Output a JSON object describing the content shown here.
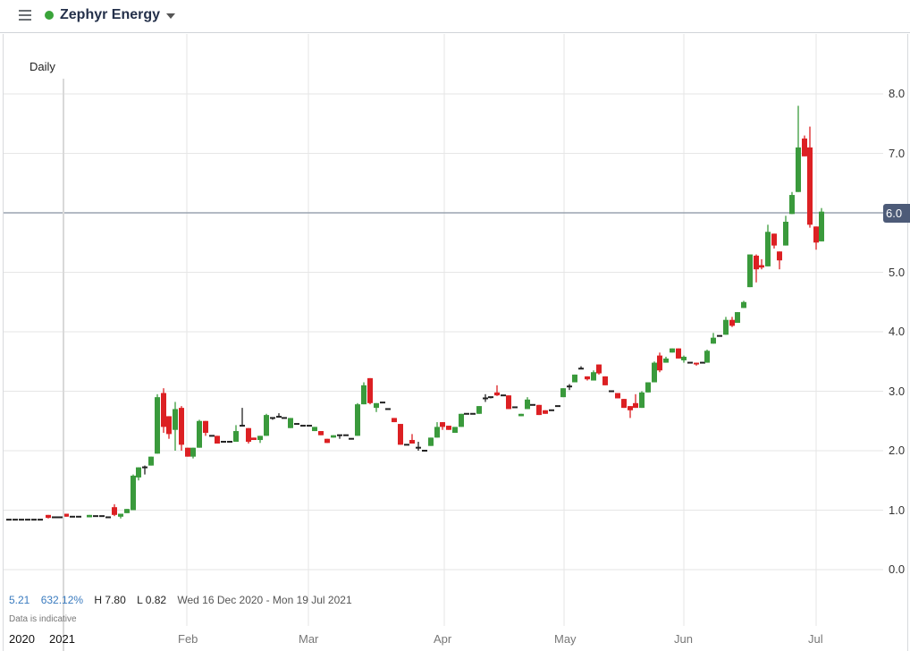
{
  "header": {
    "menu_icon": "hamburger-icon",
    "status_color": "#3aa43a",
    "instrument": "Zephyr Energy",
    "dropdown_icon": "caret-down-icon"
  },
  "chart": {
    "interval": "Daily",
    "current_price_label": "6.0",
    "stats": {
      "change": "5.21",
      "change_pct": "632.12%",
      "high": "H 7.80",
      "low": "L 0.82",
      "range": "Wed 16 Dec 2020 - Mon 19 Jul 2021"
    },
    "disclaimer": "Data is indicative",
    "x_labels": [
      {
        "text": "2020",
        "x": 10,
        "kind": "year"
      },
      {
        "text": "2021",
        "x": 55,
        "kind": "year"
      },
      {
        "text": "Feb",
        "x": 199,
        "kind": "month"
      },
      {
        "text": "Mar",
        "x": 334,
        "kind": "month"
      },
      {
        "text": "Apr",
        "x": 485,
        "kind": "month"
      },
      {
        "text": "May",
        "x": 620,
        "kind": "month"
      },
      {
        "text": "Jun",
        "x": 754,
        "kind": "month"
      },
      {
        "text": "Jul",
        "x": 904,
        "kind": "month"
      }
    ],
    "colors": {
      "up": "#3a9a3c",
      "down": "#dc2023",
      "doji": "#222222",
      "grid": "#e6e6e6",
      "price_line": "#9aa3b0",
      "price_tag": "#4d5b78"
    }
  },
  "chart_data": {
    "type": "candlestick",
    "title": "Zephyr Energy",
    "interval": "Daily",
    "xlabel": "",
    "ylabel": "",
    "ylim": [
      0,
      8.0
    ],
    "y_ticks": [
      "0.0",
      "1.0",
      "2.0",
      "3.0",
      "4.0",
      "5.0",
      "6.0",
      "7.0",
      "8.0"
    ],
    "x_ticks": [
      "2020",
      "2021",
      "Feb",
      "Mar",
      "Apr",
      "May",
      "Jun",
      "Jul"
    ],
    "grid": true,
    "current_price": 6.0,
    "high": 7.8,
    "low": 0.82,
    "change": 5.21,
    "change_pct": 632.12,
    "date_range": "Wed 16 Dec 2020 - Mon 19 Jul 2021",
    "candles": [
      {
        "x": 10,
        "o": 0.84,
        "h": 0.84,
        "l": 0.84,
        "c": 0.84
      },
      {
        "x": 17,
        "o": 0.84,
        "h": 0.84,
        "l": 0.84,
        "c": 0.84
      },
      {
        "x": 24,
        "o": 0.84,
        "h": 0.84,
        "l": 0.84,
        "c": 0.84
      },
      {
        "x": 31,
        "o": 0.84,
        "h": 0.84,
        "l": 0.84,
        "c": 0.84
      },
      {
        "x": 38,
        "o": 0.84,
        "h": 0.84,
        "l": 0.84,
        "c": 0.84
      },
      {
        "x": 45,
        "o": 0.84,
        "h": 0.84,
        "l": 0.84,
        "c": 0.84
      },
      {
        "x": 54,
        "o": 0.92,
        "h": 0.92,
        "l": 0.86,
        "c": 0.87
      },
      {
        "x": 61,
        "o": 0.88,
        "h": 0.88,
        "l": 0.88,
        "c": 0.88
      },
      {
        "x": 67,
        "o": 0.88,
        "h": 0.88,
        "l": 0.88,
        "c": 0.88
      },
      {
        "x": 74,
        "o": 0.94,
        "h": 0.94,
        "l": 0.89,
        "c": 0.89
      },
      {
        "x": 81,
        "o": 0.89,
        "h": 0.89,
        "l": 0.89,
        "c": 0.89
      },
      {
        "x": 88,
        "o": 0.89,
        "h": 0.89,
        "l": 0.89,
        "c": 0.89
      },
      {
        "x": 100,
        "o": 0.88,
        "h": 0.92,
        "l": 0.88,
        "c": 0.92
      },
      {
        "x": 107,
        "o": 0.9,
        "h": 0.9,
        "l": 0.9,
        "c": 0.9
      },
      {
        "x": 114,
        "o": 0.9,
        "h": 0.9,
        "l": 0.9,
        "c": 0.9
      },
      {
        "x": 121,
        "o": 0.88,
        "h": 0.88,
        "l": 0.88,
        "c": 0.88
      },
      {
        "x": 128,
        "o": 1.05,
        "h": 1.1,
        "l": 0.9,
        "c": 0.92
      },
      {
        "x": 135,
        "o": 0.89,
        "h": 0.94,
        "l": 0.86,
        "c": 0.94
      },
      {
        "x": 142,
        "o": 0.95,
        "h": 1.02,
        "l": 0.95,
        "c": 1.02
      },
      {
        "x": 149,
        "o": 1.0,
        "h": 1.6,
        "l": 1.0,
        "c": 1.58
      },
      {
        "x": 155,
        "o": 1.55,
        "h": 1.72,
        "l": 1.5,
        "c": 1.72
      },
      {
        "x": 162,
        "o": 1.72,
        "h": 1.75,
        "l": 1.6,
        "c": 1.72
      },
      {
        "x": 169,
        "o": 1.75,
        "h": 1.9,
        "l": 1.75,
        "c": 1.9
      },
      {
        "x": 176,
        "o": 1.95,
        "h": 2.95,
        "l": 1.95,
        "c": 2.9
      },
      {
        "x": 183,
        "o": 2.97,
        "h": 3.05,
        "l": 2.3,
        "c": 2.4
      },
      {
        "x": 189,
        "o": 2.58,
        "h": 2.58,
        "l": 2.2,
        "c": 2.28
      },
      {
        "x": 196,
        "o": 2.35,
        "h": 2.82,
        "l": 2.0,
        "c": 2.7
      },
      {
        "x": 203,
        "o": 2.72,
        "h": 2.75,
        "l": 2.0,
        "c": 2.1
      },
      {
        "x": 210,
        "o": 2.05,
        "h": 2.05,
        "l": 1.9,
        "c": 1.9
      },
      {
        "x": 216,
        "o": 1.9,
        "h": 2.05,
        "l": 1.87,
        "c": 2.05
      },
      {
        "x": 223,
        "o": 2.05,
        "h": 2.52,
        "l": 2.05,
        "c": 2.5
      },
      {
        "x": 230,
        "o": 2.5,
        "h": 2.5,
        "l": 2.25,
        "c": 2.3
      },
      {
        "x": 237,
        "o": 2.25,
        "h": 2.25,
        "l": 2.25,
        "c": 2.25
      },
      {
        "x": 243,
        "o": 2.25,
        "h": 2.25,
        "l": 2.12,
        "c": 2.12
      },
      {
        "x": 250,
        "o": 2.15,
        "h": 2.15,
        "l": 2.15,
        "c": 2.15
      },
      {
        "x": 257,
        "o": 2.15,
        "h": 2.15,
        "l": 2.15,
        "c": 2.15
      },
      {
        "x": 264,
        "o": 2.15,
        "h": 2.43,
        "l": 2.15,
        "c": 2.33
      },
      {
        "x": 271,
        "o": 2.42,
        "h": 2.72,
        "l": 2.42,
        "c": 2.42
      },
      {
        "x": 278,
        "o": 2.38,
        "h": 2.38,
        "l": 2.12,
        "c": 2.15
      },
      {
        "x": 284,
        "o": 2.22,
        "h": 2.22,
        "l": 2.18,
        "c": 2.18
      },
      {
        "x": 291,
        "o": 2.18,
        "h": 2.25,
        "l": 2.13,
        "c": 2.25
      },
      {
        "x": 298,
        "o": 2.25,
        "h": 2.62,
        "l": 2.25,
        "c": 2.6
      },
      {
        "x": 305,
        "o": 2.55,
        "h": 2.55,
        "l": 2.52,
        "c": 2.55
      },
      {
        "x": 312,
        "o": 2.57,
        "h": 2.63,
        "l": 2.57,
        "c": 2.57
      },
      {
        "x": 318,
        "o": 2.55,
        "h": 2.55,
        "l": 2.55,
        "c": 2.55
      },
      {
        "x": 325,
        "o": 2.38,
        "h": 2.55,
        "l": 2.38,
        "c": 2.55
      },
      {
        "x": 332,
        "o": 2.45,
        "h": 2.45,
        "l": 2.45,
        "c": 2.45
      },
      {
        "x": 339,
        "o": 2.42,
        "h": 2.42,
        "l": 2.42,
        "c": 2.42
      },
      {
        "x": 346,
        "o": 2.42,
        "h": 2.42,
        "l": 2.42,
        "c": 2.42
      },
      {
        "x": 352,
        "o": 2.33,
        "h": 2.4,
        "l": 2.33,
        "c": 2.4
      },
      {
        "x": 359,
        "o": 2.33,
        "h": 2.33,
        "l": 2.26,
        "c": 2.26
      },
      {
        "x": 366,
        "o": 2.2,
        "h": 2.2,
        "l": 2.13,
        "c": 2.13
      },
      {
        "x": 373,
        "o": 2.22,
        "h": 2.26,
        "l": 2.22,
        "c": 2.26
      },
      {
        "x": 380,
        "o": 2.26,
        "h": 2.26,
        "l": 2.2,
        "c": 2.26
      },
      {
        "x": 387,
        "o": 2.26,
        "h": 2.26,
        "l": 2.26,
        "c": 2.26
      },
      {
        "x": 393,
        "o": 2.2,
        "h": 2.2,
        "l": 2.2,
        "c": 2.2
      },
      {
        "x": 400,
        "o": 2.25,
        "h": 2.8,
        "l": 2.25,
        "c": 2.78
      },
      {
        "x": 407,
        "o": 2.78,
        "h": 3.15,
        "l": 2.78,
        "c": 3.1
      },
      {
        "x": 414,
        "o": 3.22,
        "h": 3.22,
        "l": 2.78,
        "c": 2.8
      },
      {
        "x": 421,
        "o": 2.72,
        "h": 2.8,
        "l": 2.65,
        "c": 2.8
      },
      {
        "x": 428,
        "o": 2.81,
        "h": 2.81,
        "l": 2.81,
        "c": 2.81
      },
      {
        "x": 434,
        "o": 2.7,
        "h": 2.7,
        "l": 2.7,
        "c": 2.7
      },
      {
        "x": 441,
        "o": 2.55,
        "h": 2.55,
        "l": 2.48,
        "c": 2.48
      },
      {
        "x": 448,
        "o": 2.45,
        "h": 2.45,
        "l": 2.1,
        "c": 2.1
      },
      {
        "x": 455,
        "o": 2.1,
        "h": 2.1,
        "l": 2.1,
        "c": 2.1
      },
      {
        "x": 461,
        "o": 2.18,
        "h": 2.28,
        "l": 2.12,
        "c": 2.12
      },
      {
        "x": 468,
        "o": 2.05,
        "h": 2.15,
        "l": 2.0,
        "c": 2.05
      },
      {
        "x": 475,
        "o": 2.0,
        "h": 2.0,
        "l": 2.0,
        "c": 2.0
      },
      {
        "x": 482,
        "o": 2.08,
        "h": 2.22,
        "l": 2.08,
        "c": 2.22
      },
      {
        "x": 489,
        "o": 2.22,
        "h": 2.48,
        "l": 2.22,
        "c": 2.4
      },
      {
        "x": 495,
        "o": 2.48,
        "h": 2.48,
        "l": 2.35,
        "c": 2.4
      },
      {
        "x": 502,
        "o": 2.42,
        "h": 2.42,
        "l": 2.35,
        "c": 2.35
      },
      {
        "x": 509,
        "o": 2.3,
        "h": 2.35,
        "l": 2.3,
        "c": 2.4
      },
      {
        "x": 516,
        "o": 2.4,
        "h": 2.62,
        "l": 2.4,
        "c": 2.62
      },
      {
        "x": 522,
        "o": 2.62,
        "h": 2.62,
        "l": 2.62,
        "c": 2.62
      },
      {
        "x": 529,
        "o": 2.62,
        "h": 2.62,
        "l": 2.62,
        "c": 2.62
      },
      {
        "x": 536,
        "o": 2.62,
        "h": 2.75,
        "l": 2.62,
        "c": 2.75
      },
      {
        "x": 543,
        "o": 2.88,
        "h": 2.95,
        "l": 2.82,
        "c": 2.88
      },
      {
        "x": 549,
        "o": 2.9,
        "h": 2.9,
        "l": 2.88,
        "c": 2.9
      },
      {
        "x": 556,
        "o": 2.98,
        "h": 3.1,
        "l": 2.92,
        "c": 2.93
      },
      {
        "x": 563,
        "o": 2.93,
        "h": 2.93,
        "l": 2.92,
        "c": 2.93
      },
      {
        "x": 569,
        "o": 2.93,
        "h": 2.93,
        "l": 2.7,
        "c": 2.7
      },
      {
        "x": 576,
        "o": 2.73,
        "h": 2.73,
        "l": 2.73,
        "c": 2.73
      },
      {
        "x": 583,
        "o": 2.58,
        "h": 2.62,
        "l": 2.58,
        "c": 2.62
      },
      {
        "x": 590,
        "o": 2.7,
        "h": 2.9,
        "l": 2.7,
        "c": 2.86
      },
      {
        "x": 596,
        "o": 2.77,
        "h": 2.77,
        "l": 2.77,
        "c": 2.77
      },
      {
        "x": 603,
        "o": 2.77,
        "h": 2.77,
        "l": 2.6,
        "c": 2.6
      },
      {
        "x": 610,
        "o": 2.68,
        "h": 2.68,
        "l": 2.62,
        "c": 2.62
      },
      {
        "x": 617,
        "o": 2.68,
        "h": 2.68,
        "l": 2.68,
        "c": 2.68
      },
      {
        "x": 624,
        "o": 2.75,
        "h": 2.75,
        "l": 2.75,
        "c": 2.75
      },
      {
        "x": 630,
        "o": 2.9,
        "h": 3.05,
        "l": 2.9,
        "c": 3.05
      },
      {
        "x": 637,
        "o": 3.08,
        "h": 3.12,
        "l": 3.02,
        "c": 3.08
      },
      {
        "x": 643,
        "o": 3.15,
        "h": 3.28,
        "l": 3.15,
        "c": 3.28
      },
      {
        "x": 650,
        "o": 3.38,
        "h": 3.42,
        "l": 3.38,
        "c": 3.38
      },
      {
        "x": 657,
        "o": 3.25,
        "h": 3.25,
        "l": 3.18,
        "c": 3.2
      },
      {
        "x": 664,
        "o": 3.18,
        "h": 3.35,
        "l": 3.18,
        "c": 3.32
      },
      {
        "x": 670,
        "o": 3.45,
        "h": 3.45,
        "l": 3.28,
        "c": 3.3
      },
      {
        "x": 677,
        "o": 3.25,
        "h": 3.25,
        "l": 3.1,
        "c": 3.1
      },
      {
        "x": 684,
        "o": 3.0,
        "h": 3.0,
        "l": 3.0,
        "c": 3.0
      },
      {
        "x": 691,
        "o": 2.97,
        "h": 2.97,
        "l": 2.88,
        "c": 2.88
      },
      {
        "x": 698,
        "o": 2.87,
        "h": 2.87,
        "l": 2.72,
        "c": 2.72
      },
      {
        "x": 705,
        "o": 2.75,
        "h": 2.75,
        "l": 2.55,
        "c": 2.68
      },
      {
        "x": 711,
        "o": 2.8,
        "h": 2.95,
        "l": 2.72,
        "c": 2.72
      },
      {
        "x": 718,
        "o": 2.72,
        "h": 3.0,
        "l": 2.72,
        "c": 2.98
      },
      {
        "x": 725,
        "o": 2.98,
        "h": 3.15,
        "l": 2.98,
        "c": 3.15
      },
      {
        "x": 732,
        "o": 3.15,
        "h": 3.5,
        "l": 3.15,
        "c": 3.48
      },
      {
        "x": 738,
        "o": 3.6,
        "h": 3.65,
        "l": 3.32,
        "c": 3.35
      },
      {
        "x": 745,
        "o": 3.48,
        "h": 3.58,
        "l": 3.48,
        "c": 3.55
      },
      {
        "x": 752,
        "o": 3.65,
        "h": 3.72,
        "l": 3.65,
        "c": 3.72
      },
      {
        "x": 759,
        "o": 3.72,
        "h": 3.72,
        "l": 3.55,
        "c": 3.55
      },
      {
        "x": 765,
        "o": 3.52,
        "h": 3.6,
        "l": 3.48,
        "c": 3.58
      },
      {
        "x": 772,
        "o": 3.48,
        "h": 3.48,
        "l": 3.48,
        "c": 3.48
      },
      {
        "x": 779,
        "o": 3.48,
        "h": 3.48,
        "l": 3.43,
        "c": 3.45
      },
      {
        "x": 786,
        "o": 3.48,
        "h": 3.48,
        "l": 3.48,
        "c": 3.48
      },
      {
        "x": 791,
        "o": 3.48,
        "h": 3.7,
        "l": 3.48,
        "c": 3.68
      },
      {
        "x": 798,
        "o": 3.8,
        "h": 3.98,
        "l": 3.8,
        "c": 3.9
      },
      {
        "x": 805,
        "o": 3.93,
        "h": 3.93,
        "l": 3.93,
        "c": 3.93
      },
      {
        "x": 812,
        "o": 3.95,
        "h": 4.25,
        "l": 3.95,
        "c": 4.2
      },
      {
        "x": 819,
        "o": 4.2,
        "h": 4.25,
        "l": 4.08,
        "c": 4.1
      },
      {
        "x": 825,
        "o": 4.15,
        "h": 4.33,
        "l": 4.15,
        "c": 4.33
      },
      {
        "x": 832,
        "o": 4.4,
        "h": 4.52,
        "l": 4.4,
        "c": 4.5
      },
      {
        "x": 839,
        "o": 4.75,
        "h": 5.3,
        "l": 4.75,
        "c": 5.3
      },
      {
        "x": 846,
        "o": 5.28,
        "h": 5.3,
        "l": 4.83,
        "c": 5.05
      },
      {
        "x": 852,
        "o": 5.12,
        "h": 5.22,
        "l": 5.05,
        "c": 5.08
      },
      {
        "x": 859,
        "o": 5.1,
        "h": 5.8,
        "l": 5.1,
        "c": 5.68
      },
      {
        "x": 866,
        "o": 5.65,
        "h": 5.65,
        "l": 5.4,
        "c": 5.45
      },
      {
        "x": 872,
        "o": 5.35,
        "h": 5.35,
        "l": 5.05,
        "c": 5.2
      },
      {
        "x": 879,
        "o": 5.45,
        "h": 5.95,
        "l": 5.45,
        "c": 5.85
      },
      {
        "x": 886,
        "o": 5.98,
        "h": 6.35,
        "l": 5.98,
        "c": 6.3
      },
      {
        "x": 893,
        "o": 6.35,
        "h": 7.8,
        "l": 6.35,
        "c": 7.1
      },
      {
        "x": 900,
        "o": 7.25,
        "h": 7.3,
        "l": 6.95,
        "c": 6.95
      },
      {
        "x": 906,
        "o": 7.1,
        "h": 7.45,
        "l": 5.75,
        "c": 5.8
      },
      {
        "x": 913,
        "o": 5.77,
        "h": 5.77,
        "l": 5.38,
        "c": 5.5
      },
      {
        "x": 919,
        "o": 5.52,
        "h": 6.08,
        "l": 5.52,
        "c": 6.02
      }
    ]
  }
}
